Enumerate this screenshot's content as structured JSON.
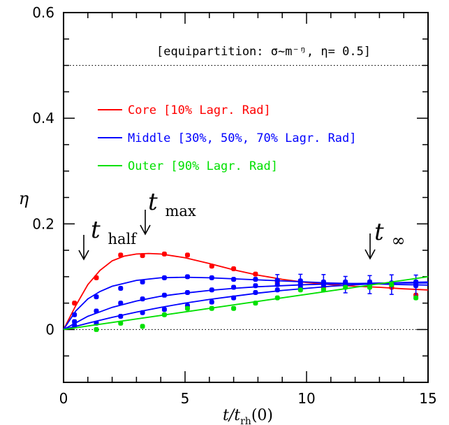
{
  "chart_data": {
    "type": "scatter",
    "xlabel": "t/t_rh(0)",
    "xlabel_main": "t/t",
    "xlabel_sub": "rh",
    "xlabel_tail": "(0)",
    "ylabel": "η",
    "xlim": [
      0,
      15
    ],
    "ylim": [
      -0.1,
      0.6
    ],
    "xticks": [
      0,
      5,
      10,
      15
    ],
    "yticks": [
      0,
      0.2,
      0.4,
      0.6
    ],
    "ytick_labels": [
      "0",
      "0.2",
      "0.4",
      "0.6"
    ],
    "reference_lines": [
      {
        "y": 0.5,
        "style": "dotted",
        "label": "[equipartition: σ~m⁻ᵑ, η= 0.5]"
      },
      {
        "y": 0,
        "style": "dotted"
      }
    ],
    "annotations": [
      {
        "label_main": "t",
        "label_sub": "half",
        "x": 0.9
      },
      {
        "label_main": "t",
        "label_sub": "max",
        "x": 3.5
      },
      {
        "label_main": "t",
        "label_sub": "∞",
        "x": 12.5
      }
    ],
    "legend": {
      "position": "upper-left",
      "entries": [
        {
          "label": "Core [10% Lagr. Rad]",
          "color": "#ff0000"
        },
        {
          "label": "Middle [30%, 50%, 70% Lagr. Rad]",
          "color": "#0000ff"
        },
        {
          "label": "Outer [90% Lagr. Rad]",
          "color": "#00e000"
        }
      ]
    },
    "series": [
      {
        "color": "#ff0000",
        "points": [
          [
            0.45,
            0.05
          ],
          [
            1.35,
            0.098
          ],
          [
            2.35,
            0.141
          ],
          [
            3.25,
            0.14
          ],
          [
            4.15,
            0.143
          ],
          [
            5.1,
            0.141
          ],
          [
            6.1,
            0.12
          ],
          [
            7.0,
            0.115
          ],
          [
            7.9,
            0.105
          ],
          [
            8.8,
            0.09
          ],
          [
            9.75,
            0.085
          ],
          [
            10.7,
            0.08
          ],
          [
            11.6,
            0.088
          ],
          [
            12.6,
            0.088
          ],
          [
            13.5,
            0.08
          ],
          [
            14.5,
            0.065
          ]
        ],
        "curve": [
          [
            0,
            0
          ],
          [
            0.5,
            0.045
          ],
          [
            1,
            0.085
          ],
          [
            1.5,
            0.112
          ],
          [
            2,
            0.13
          ],
          [
            2.5,
            0.139
          ],
          [
            3,
            0.143
          ],
          [
            3.5,
            0.144
          ],
          [
            4,
            0.143
          ],
          [
            5,
            0.136
          ],
          [
            6,
            0.125
          ],
          [
            7,
            0.113
          ],
          [
            8,
            0.103
          ],
          [
            9,
            0.095
          ],
          [
            10,
            0.089
          ],
          [
            11,
            0.085
          ],
          [
            12,
            0.082
          ],
          [
            13,
            0.08
          ],
          [
            14,
            0.077
          ],
          [
            15,
            0.075
          ]
        ]
      },
      {
        "color": "#0000ff",
        "points": [
          [
            0.45,
            0.028
          ],
          [
            1.35,
            0.062
          ],
          [
            2.35,
            0.078
          ],
          [
            3.25,
            0.09
          ],
          [
            4.15,
            0.098
          ],
          [
            5.1,
            0.1
          ],
          [
            6.1,
            0.098
          ],
          [
            7.0,
            0.095
          ],
          [
            7.9,
            0.095
          ],
          [
            8.8,
            0.093
          ],
          [
            9.75,
            0.092
          ],
          [
            10.7,
            0.09
          ],
          [
            11.6,
            0.085
          ],
          [
            12.6,
            0.085
          ],
          [
            13.5,
            0.085
          ],
          [
            14.5,
            0.083
          ]
        ],
        "curve": [
          [
            0,
            0
          ],
          [
            0.5,
            0.035
          ],
          [
            1,
            0.058
          ],
          [
            1.5,
            0.072
          ],
          [
            2,
            0.082
          ],
          [
            3,
            0.093
          ],
          [
            4,
            0.098
          ],
          [
            5,
            0.099
          ],
          [
            6,
            0.098
          ],
          [
            7,
            0.096
          ],
          [
            8,
            0.094
          ],
          [
            9,
            0.092
          ],
          [
            10,
            0.09
          ],
          [
            11,
            0.088
          ],
          [
            12,
            0.087
          ],
          [
            13,
            0.086
          ],
          [
            14,
            0.085
          ],
          [
            15,
            0.084
          ]
        ],
        "error_bars": true
      },
      {
        "color": "#0000ff",
        "points": [
          [
            0.45,
            0.015
          ],
          [
            1.35,
            0.035
          ],
          [
            2.35,
            0.05
          ],
          [
            3.25,
            0.058
          ],
          [
            4.15,
            0.065
          ],
          [
            5.1,
            0.07
          ],
          [
            6.1,
            0.075
          ],
          [
            7.0,
            0.08
          ],
          [
            7.9,
            0.083
          ],
          [
            8.8,
            0.085
          ],
          [
            9.75,
            0.088
          ],
          [
            10.7,
            0.088
          ],
          [
            11.6,
            0.09
          ],
          [
            12.6,
            0.088
          ],
          [
            13.5,
            0.088
          ],
          [
            14.5,
            0.085
          ]
        ],
        "curve": [
          [
            0,
            0
          ],
          [
            1,
            0.025
          ],
          [
            2,
            0.042
          ],
          [
            3,
            0.054
          ],
          [
            4,
            0.063
          ],
          [
            5,
            0.069
          ],
          [
            6,
            0.074
          ],
          [
            7,
            0.078
          ],
          [
            8,
            0.081
          ],
          [
            9,
            0.083
          ],
          [
            10,
            0.085
          ],
          [
            11,
            0.086
          ],
          [
            12,
            0.087
          ],
          [
            13,
            0.088
          ],
          [
            14,
            0.088
          ],
          [
            15,
            0.088
          ]
        ]
      },
      {
        "color": "#0000ff",
        "points": [
          [
            0.45,
            0.008
          ],
          [
            1.35,
            0.012
          ],
          [
            2.35,
            0.025
          ],
          [
            3.25,
            0.032
          ],
          [
            4.15,
            0.038
          ],
          [
            5.1,
            0.045
          ],
          [
            6.1,
            0.052
          ],
          [
            7.0,
            0.06
          ],
          [
            7.9,
            0.07
          ],
          [
            8.8,
            0.075
          ],
          [
            9.75,
            0.08
          ],
          [
            10.7,
            0.085
          ],
          [
            11.6,
            0.085
          ],
          [
            12.6,
            0.09
          ],
          [
            13.5,
            0.088
          ],
          [
            14.5,
            0.09
          ]
        ],
        "curve": [
          [
            0,
            0
          ],
          [
            1,
            0.012
          ],
          [
            2,
            0.023
          ],
          [
            3,
            0.033
          ],
          [
            4,
            0.042
          ],
          [
            5,
            0.05
          ],
          [
            6,
            0.057
          ],
          [
            7,
            0.063
          ],
          [
            8,
            0.069
          ],
          [
            9,
            0.074
          ],
          [
            10,
            0.078
          ],
          [
            11,
            0.082
          ],
          [
            12,
            0.085
          ],
          [
            13,
            0.087
          ],
          [
            14,
            0.089
          ],
          [
            15,
            0.09
          ]
        ]
      },
      {
        "color": "#00e000",
        "points": [
          [
            1.35,
            0.0
          ],
          [
            2.35,
            0.012
          ],
          [
            3.25,
            0.006
          ],
          [
            4.15,
            0.028
          ],
          [
            5.1,
            0.04
          ],
          [
            6.1,
            0.04
          ],
          [
            7.0,
            0.04
          ],
          [
            7.9,
            0.05
          ],
          [
            8.8,
            0.06
          ],
          [
            9.75,
            0.075
          ],
          [
            10.7,
            0.075
          ],
          [
            11.6,
            0.08
          ],
          [
            12.6,
            0.08
          ],
          [
            13.5,
            0.085
          ],
          [
            14.5,
            0.06
          ]
        ],
        "curve": [
          [
            0,
            0
          ],
          [
            15,
            0.1
          ]
        ]
      }
    ]
  }
}
